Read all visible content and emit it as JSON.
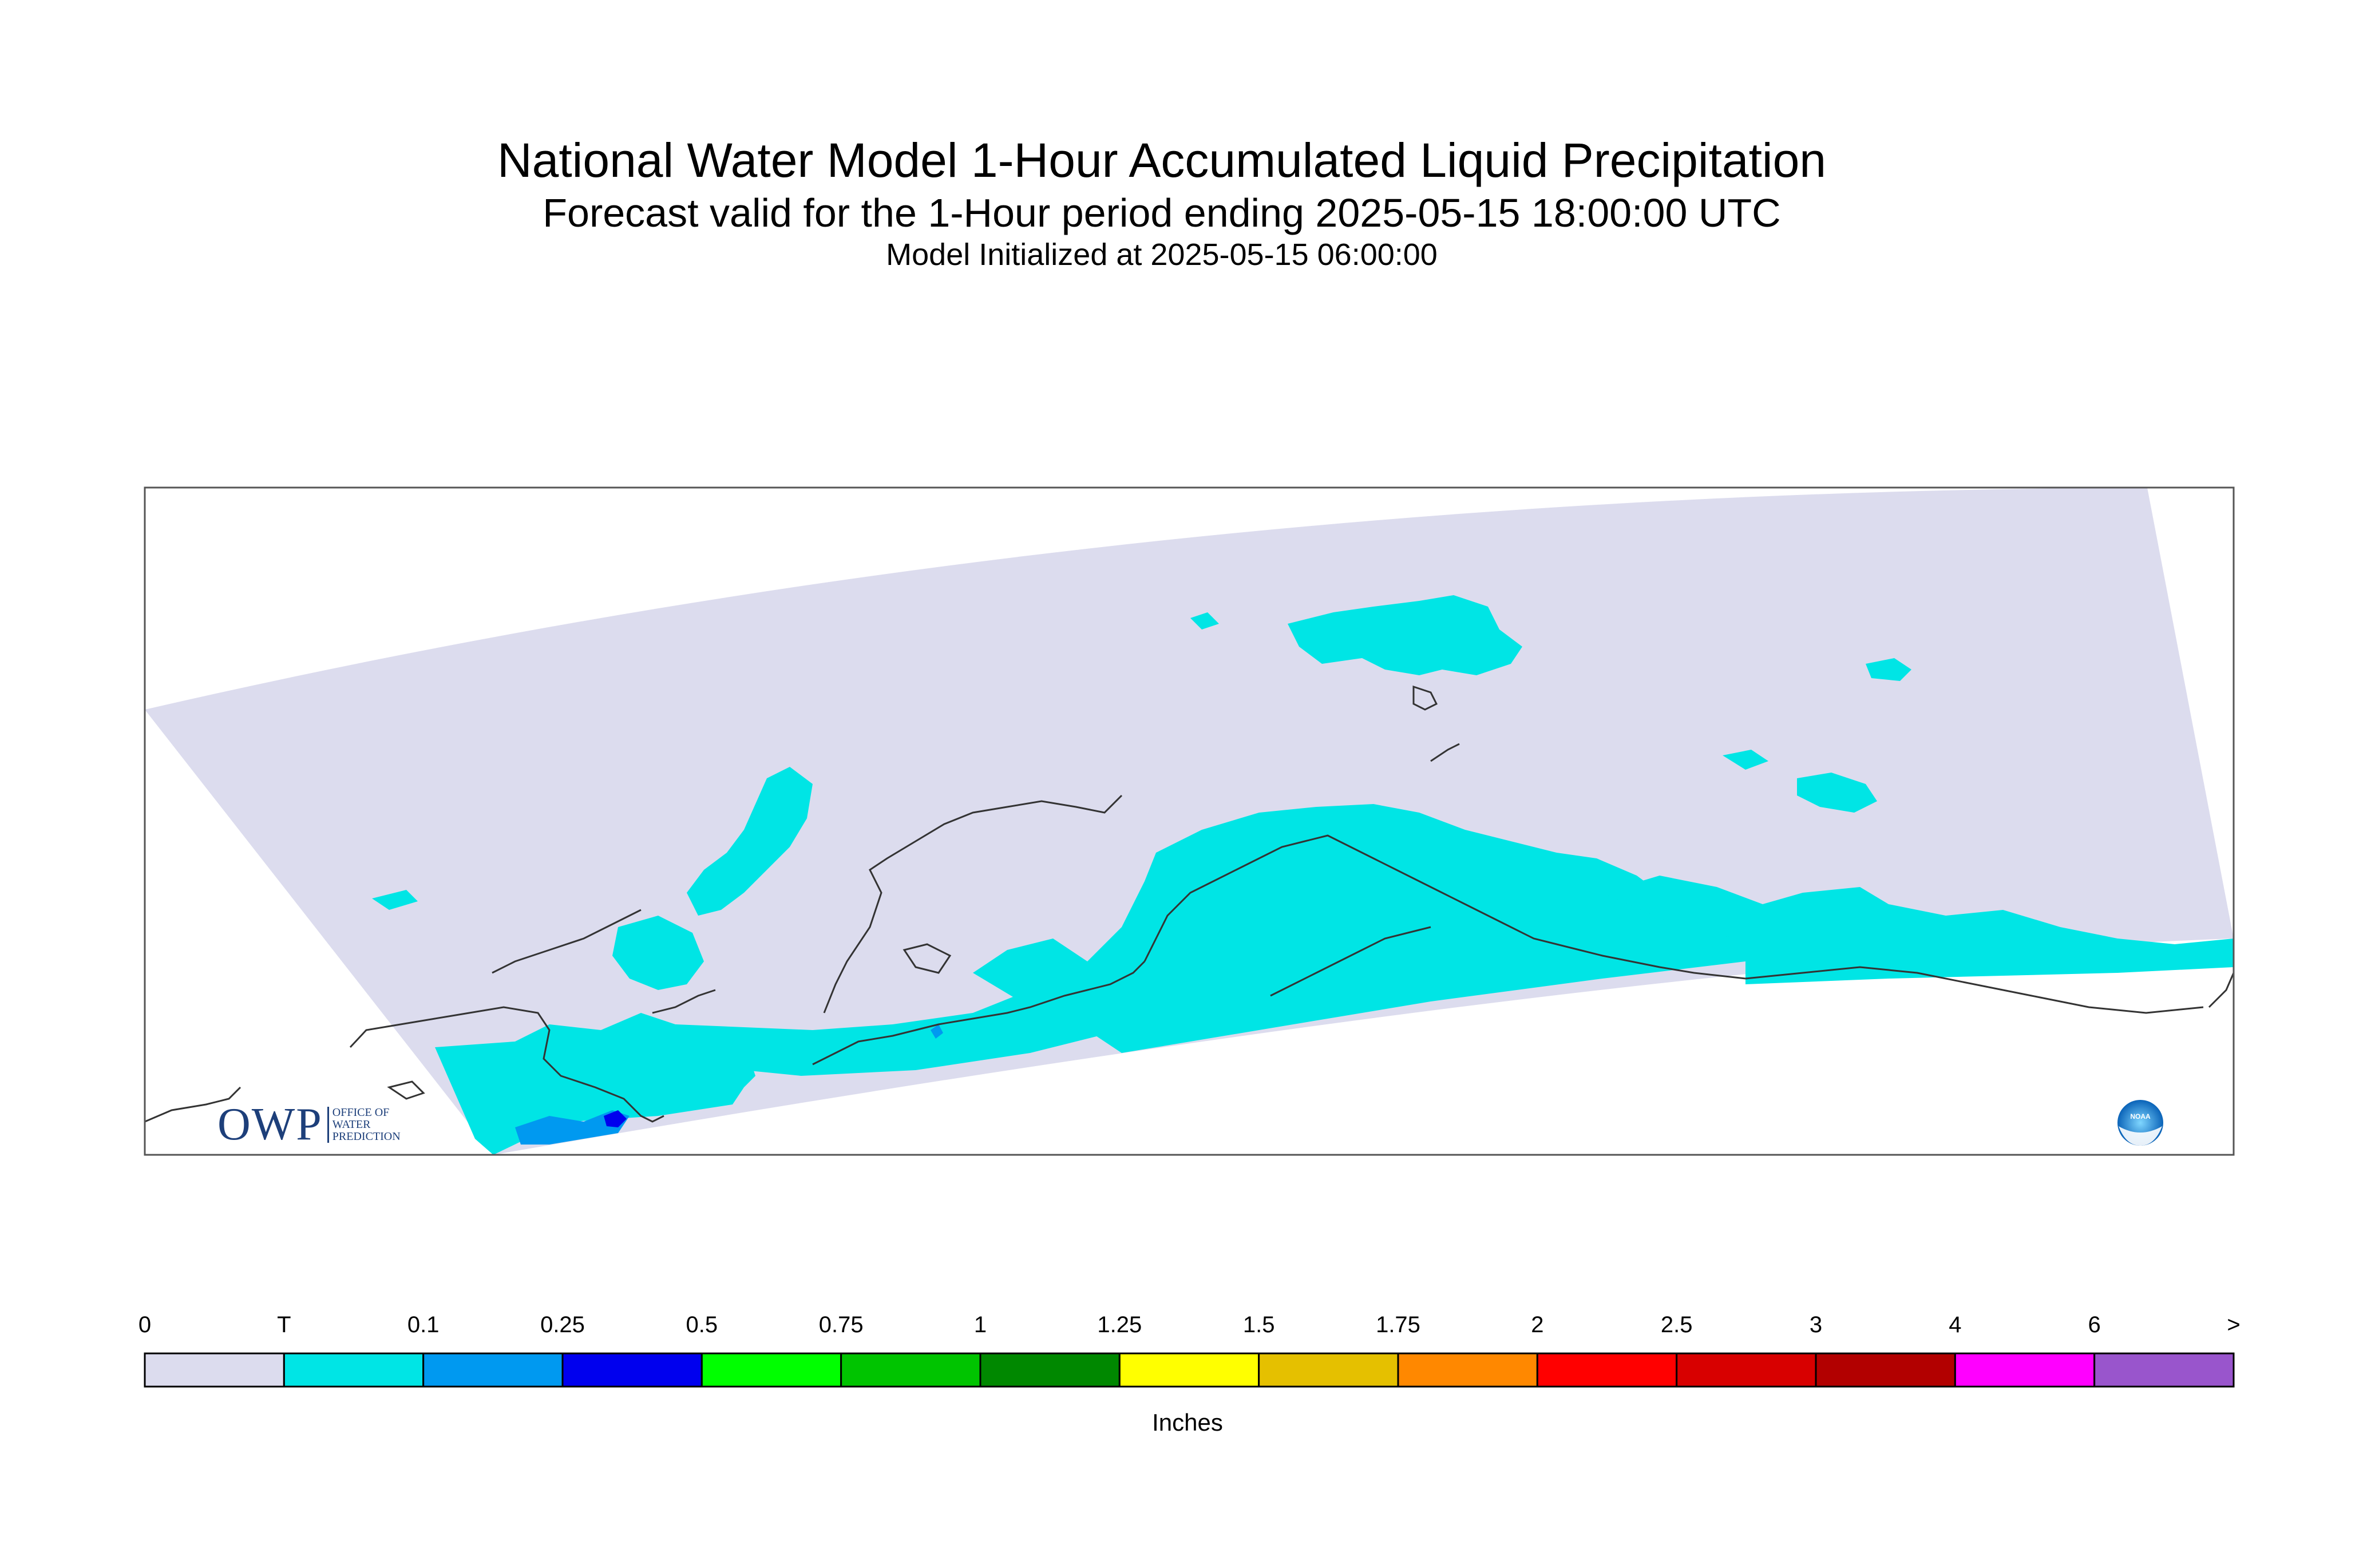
{
  "header": {
    "title": "National Water Model 1-Hour Accumulated Liquid Precipitation",
    "subtitle": "Forecast valid for the 1-Hour period ending 2025-05-15 18:00:00 UTC",
    "init_line": "Model Initialized at 2025-05-15 06:00:00"
  },
  "legend": {
    "unit_label": "Inches",
    "tick_labels": [
      "0",
      "T",
      "0.1",
      "0.25",
      "0.5",
      "0.75",
      "1",
      "1.25",
      "1.5",
      "1.75",
      "2",
      "2.5",
      "3",
      "4",
      "6",
      ">"
    ],
    "colors": [
      "#dcdcee",
      "#00e5e5",
      "#0099f0",
      "#0000ee",
      "#00ff00",
      "#00c400",
      "#008800",
      "#ffff00",
      "#e5c000",
      "#ff8800",
      "#ff0000",
      "#d80000",
      "#b20000",
      "#ff00ff",
      "#9955cc"
    ]
  },
  "map": {
    "domain_color": "#dcdcee",
    "trace_color": "#00e5e5",
    "light_color": "#0099f0",
    "heavy_color": "#0000ee",
    "coast_color": "#333333"
  },
  "logos": {
    "owp_letters": "OWP",
    "owp_line1": "Office of",
    "owp_line2": "Water",
    "owp_line3": "Prediction",
    "noaa_text": "NOAA"
  }
}
